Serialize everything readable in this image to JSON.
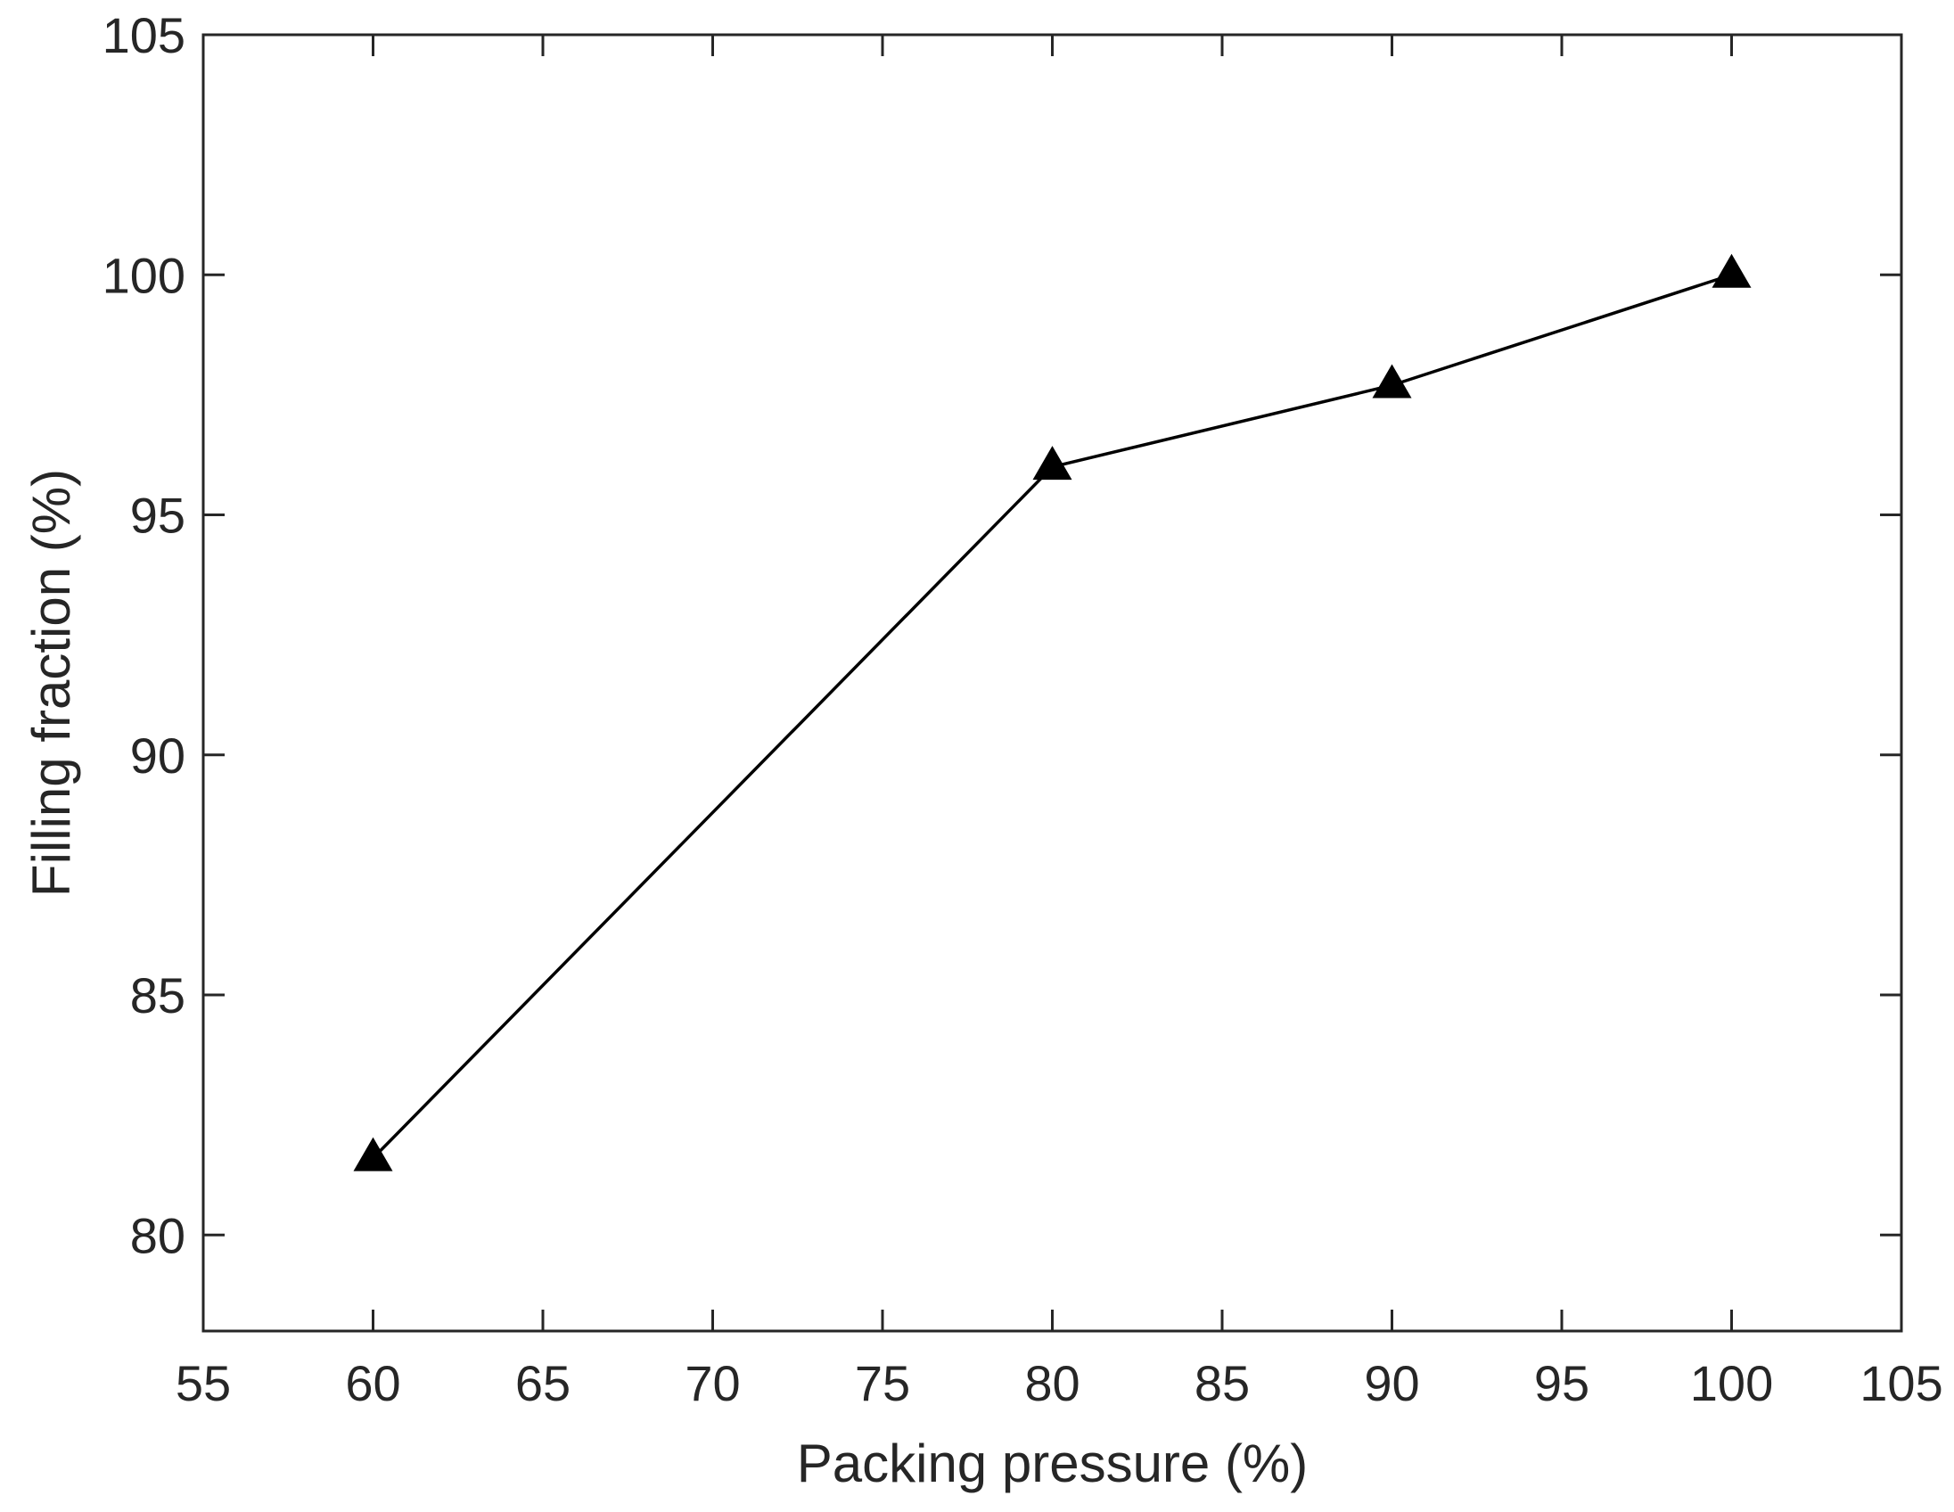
{
  "chart_data": {
    "type": "line",
    "title": "",
    "xlabel": "Packing pressure (%)",
    "ylabel": "Filling fraction (%)",
    "xlim": [
      55,
      105
    ],
    "ylim": [
      78,
      105
    ],
    "x_ticks": [
      "55",
      "60",
      "65",
      "70",
      "75",
      "80",
      "85",
      "90",
      "95",
      "100",
      "105"
    ],
    "y_ticks": [
      "80",
      "85",
      "90",
      "95",
      "100",
      "105"
    ],
    "grid": false,
    "legend": "none",
    "marker": "filled-triangle",
    "colors": {
      "series": "#000000",
      "axis": "#262626",
      "background": "#ffffff"
    },
    "x": [
      60,
      80,
      90,
      100
    ],
    "series": [
      {
        "values": [
          81.6,
          96.0,
          97.7,
          100.0
        ]
      }
    ]
  }
}
